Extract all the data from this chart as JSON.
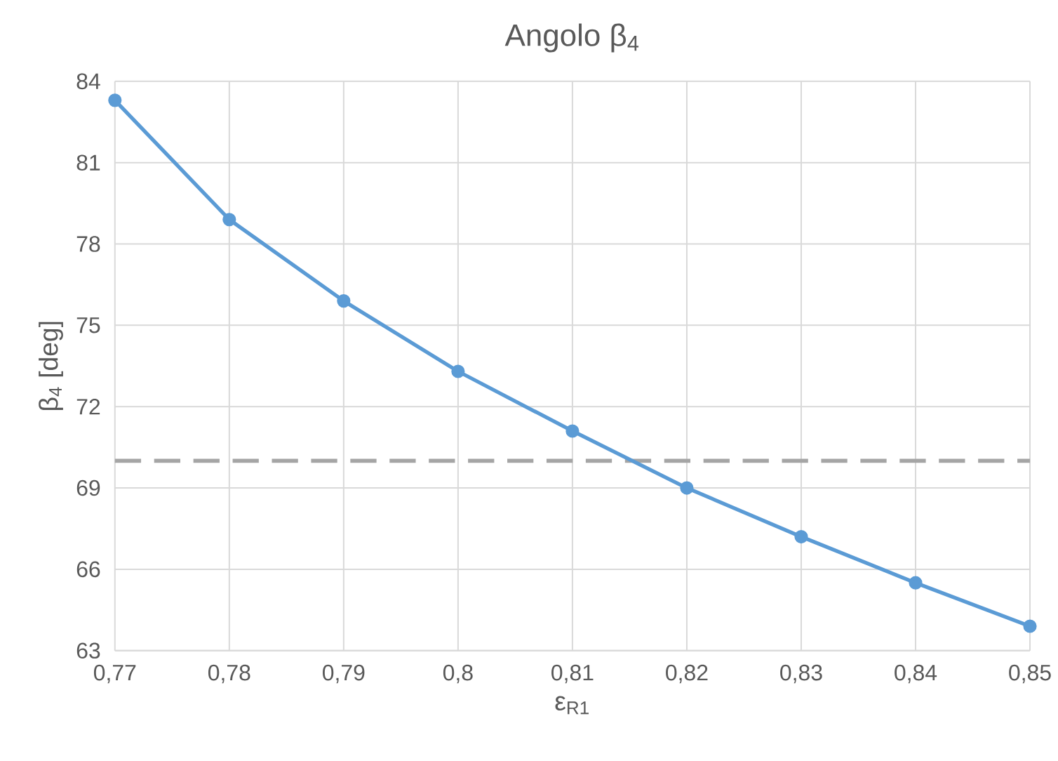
{
  "chart_data": {
    "type": "line",
    "title": "Angolo β$_{4}$",
    "xlabel": "ε$_{R1}$",
    "ylabel": "β$_{4}$ [deg]",
    "x": [
      0.77,
      0.78,
      0.79,
      0.8,
      0.81,
      0.82,
      0.83,
      0.84,
      0.85
    ],
    "series": [
      {
        "color": "#5b9bd5",
        "values": [
          83.3,
          78.9,
          75.9,
          73.3,
          71.1,
          69.0,
          67.2,
          65.5,
          63.9
        ]
      }
    ],
    "xlim": [
      0.77,
      0.85
    ],
    "xticks": [
      {
        "value": 0.77,
        "label": "0,77"
      },
      {
        "value": 0.78,
        "label": "0,78"
      },
      {
        "value": 0.79,
        "label": "0,79"
      },
      {
        "value": 0.8,
        "label": "0,8"
      },
      {
        "value": 0.81,
        "label": "0,81"
      },
      {
        "value": 0.82,
        "label": "0,82"
      },
      {
        "value": 0.83,
        "label": "0,83"
      },
      {
        "value": 0.84,
        "label": "0,84"
      },
      {
        "value": 0.85,
        "label": "0,85"
      }
    ],
    "ylim": [
      63,
      84
    ],
    "yticks": [
      63,
      66,
      69,
      72,
      75,
      78,
      81,
      84
    ],
    "ref_lines": [
      {
        "axis": "y",
        "value": 70,
        "color": "#a5a5a5",
        "line_style": "dashed"
      }
    ],
    "grid": true,
    "marker": "circle",
    "line_style": "solid"
  }
}
